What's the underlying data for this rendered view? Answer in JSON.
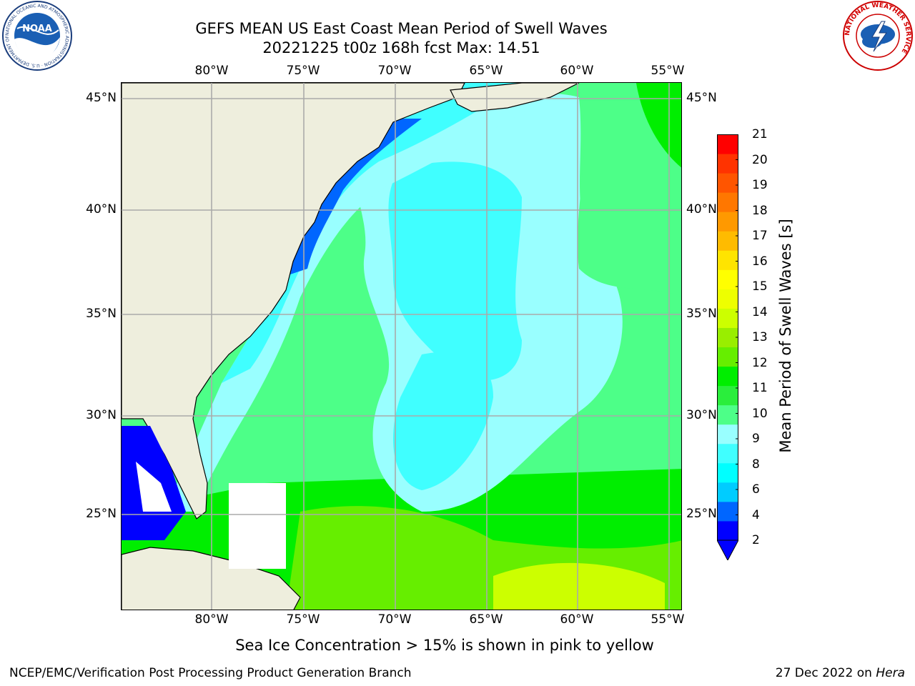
{
  "title": {
    "line1": "GEFS MEAN US East Coast Mean Period of Swell Waves",
    "line2": "20221225 t00z 168h fcst   Max: 14.51"
  },
  "axes": {
    "lon_labels": [
      "80°W",
      "75°W",
      "70°W",
      "65°W",
      "60°W",
      "55°W"
    ],
    "lat_labels": [
      "45°N",
      "40°N",
      "35°N",
      "30°N",
      "25°N"
    ]
  },
  "colorbar": {
    "title": "Mean Period of Swell Waves [s]",
    "tick_labels": [
      "21",
      "20",
      "19",
      "18",
      "17",
      "16",
      "15",
      "14",
      "13",
      "12",
      "11",
      "10",
      "9",
      "8",
      "6",
      "4",
      "2"
    ],
    "colors": [
      "#0000ff",
      "#0066ff",
      "#00ccff",
      "#00ffff",
      "#40ffff",
      "#99ffff",
      "#4dff88",
      "#2aee3c",
      "#00ee00",
      "#66ee00",
      "#99ee00",
      "#ccff00",
      "#eeff00",
      "#ffff00",
      "#ffe400",
      "#ffbb00",
      "#ff9900",
      "#ff7700",
      "#ff5500",
      "#ff3300",
      "#ff0000"
    ],
    "extend_color": "#0000ff"
  },
  "map": {
    "land_color": "#eeeedd",
    "grid_color": "#aaaaaa"
  },
  "footnote": "Sea Ice Concentration > 15% is shown in pink to yellow",
  "footer": {
    "left": "NCEP/EMC/Verification Post Processing Product Generation Branch",
    "right_date": "27 Dec 2022 on ",
    "right_host": "Hera"
  },
  "logos": {
    "noaa_text": "NOAA",
    "noaa_ring_text": "NATIONAL OCEANIC AND ATMOSPHERIC ADMINISTRATION · U.S. DEPARTMENT OF COMMERCE",
    "nws_ring_text": "NATIONAL WEATHER SERVICE"
  }
}
